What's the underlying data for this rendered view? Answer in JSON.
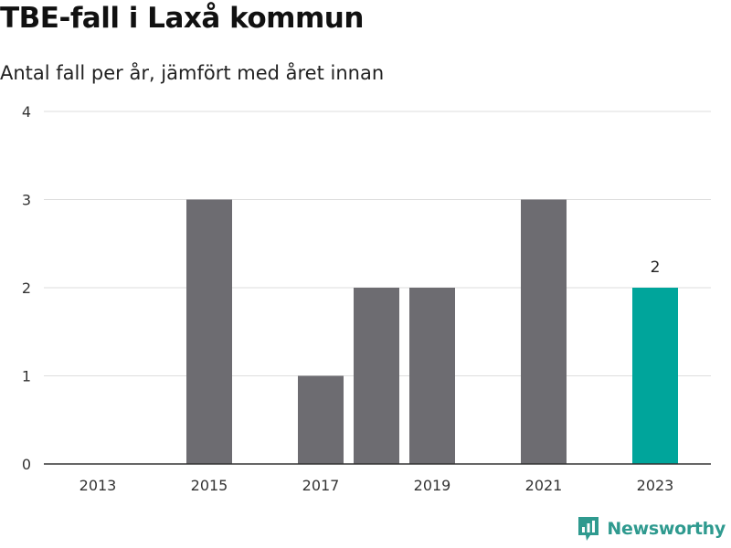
{
  "header": {
    "title": "TBE-fall i Laxå kommun",
    "subtitle": "Antal fall per år, jämfört med året innan"
  },
  "brand": {
    "name": "Newsworthy",
    "icon": "newsworthy-logo-icon",
    "color": "#2f9a8f"
  },
  "colors": {
    "bar": "#6d6c71",
    "highlight": "#00a59b",
    "grid": "#dddddd",
    "axis": "#333333"
  },
  "chart_data": {
    "type": "bar",
    "categories": [
      "2013",
      "2014",
      "2015",
      "2016",
      "2017",
      "2018",
      "2019",
      "2020",
      "2021",
      "2022",
      "2023"
    ],
    "values": [
      0,
      0,
      3,
      0,
      1,
      2,
      2,
      0,
      3,
      0,
      2
    ],
    "x_tick_labels": [
      "2013",
      "2015",
      "2017",
      "2019",
      "2021",
      "2023"
    ],
    "y_ticks": [
      0,
      1,
      2,
      3,
      4
    ],
    "ylim": [
      0,
      4
    ],
    "highlight_category": "2023",
    "data_labels": [
      {
        "category": "2023",
        "text": "2"
      }
    ],
    "title": "TBE-fall i Laxå kommun",
    "subtitle": "Antal fall per år, jämfört med året innan",
    "xlabel": "",
    "ylabel": "",
    "grid": true,
    "legend": "none"
  }
}
